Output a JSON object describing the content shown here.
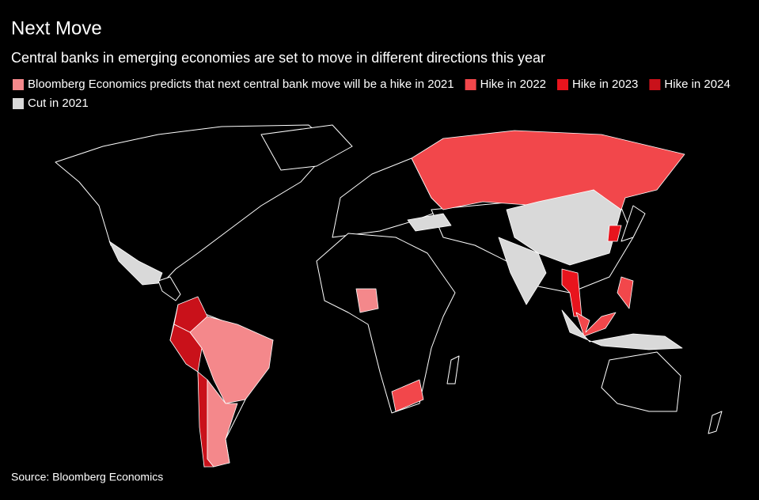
{
  "header": {
    "title": "Next Move",
    "subtitle": "Central banks in emerging economies are set to move in different directions this year"
  },
  "legend": [
    {
      "name": "Bloomberg Economics predicts that next central bank move will be a hike in 2021",
      "color": "#f4888b"
    },
    {
      "name": "Hike in 2022",
      "color": "#f2474b"
    },
    {
      "name": "Hike in 2023",
      "color": "#e8141d"
    },
    {
      "name": "Hike in 2024",
      "color": "#c9111a"
    },
    {
      "name": "Cut in 2021",
      "color": "#d9d9d9"
    }
  ],
  "source": "Source: Bloomberg Economics"
}
